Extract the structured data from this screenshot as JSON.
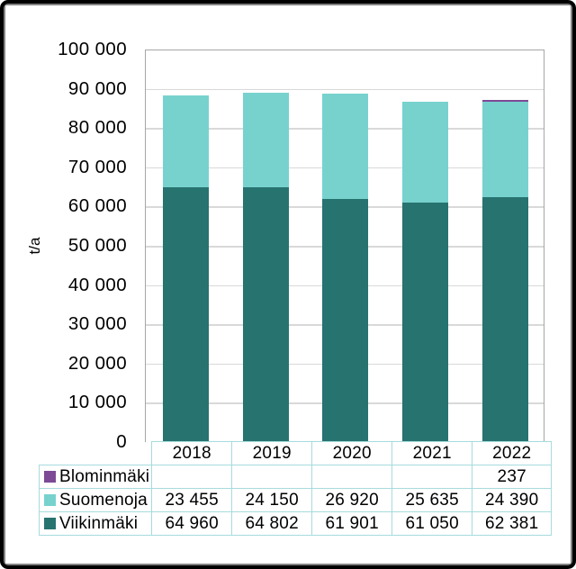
{
  "chart_data": {
    "type": "bar",
    "stacked": true,
    "title": "",
    "xlabel": "",
    "ylabel": "t/a",
    "ylim": [
      0,
      100000
    ],
    "ytick_step": 10000,
    "ytick_labels": [
      "100 000",
      "90 000",
      "80 000",
      "70 000",
      "60 000",
      "50 000",
      "40 000",
      "30 000",
      "20 000",
      "10 000",
      "0"
    ],
    "categories": [
      "2018",
      "2019",
      "2020",
      "2021",
      "2022"
    ],
    "series": [
      {
        "name": "Blominmäki",
        "color": "#7D4A96",
        "values": [
          null,
          null,
          null,
          null,
          237
        ]
      },
      {
        "name": "Suomenoja",
        "color": "#77D2CE",
        "values": [
          23455,
          24150,
          26920,
          25635,
          24390
        ]
      },
      {
        "name": "Viikinmäki",
        "color": "#277370",
        "values": [
          64960,
          64802,
          61901,
          61050,
          62381
        ]
      }
    ],
    "grid": true,
    "legend_position": "table-below"
  },
  "table": {
    "header": [
      "",
      "2018",
      "2019",
      "2020",
      "2021",
      "2022"
    ],
    "rows": [
      {
        "label": "Blominmäki",
        "swatch_color": "#7D4A96",
        "values": [
          "",
          "",
          "",
          "",
          "237"
        ]
      },
      {
        "label": "Suomenoja",
        "swatch_color": "#77D2CE",
        "values": [
          "23 455",
          "24 150",
          "26 920",
          "25 635",
          "24 390"
        ]
      },
      {
        "label": "Viikinmäki",
        "swatch_color": "#277370",
        "values": [
          "64 960",
          "64 802",
          "61 901",
          "61 050",
          "62 381"
        ]
      }
    ],
    "border_color": "#A7DBDE"
  },
  "colors": {
    "gridline": "#D9D9D9",
    "plot_border": "#A6A6A6",
    "frame_black": "#000000",
    "frame_gray": "#828282",
    "text": "#000000"
  }
}
